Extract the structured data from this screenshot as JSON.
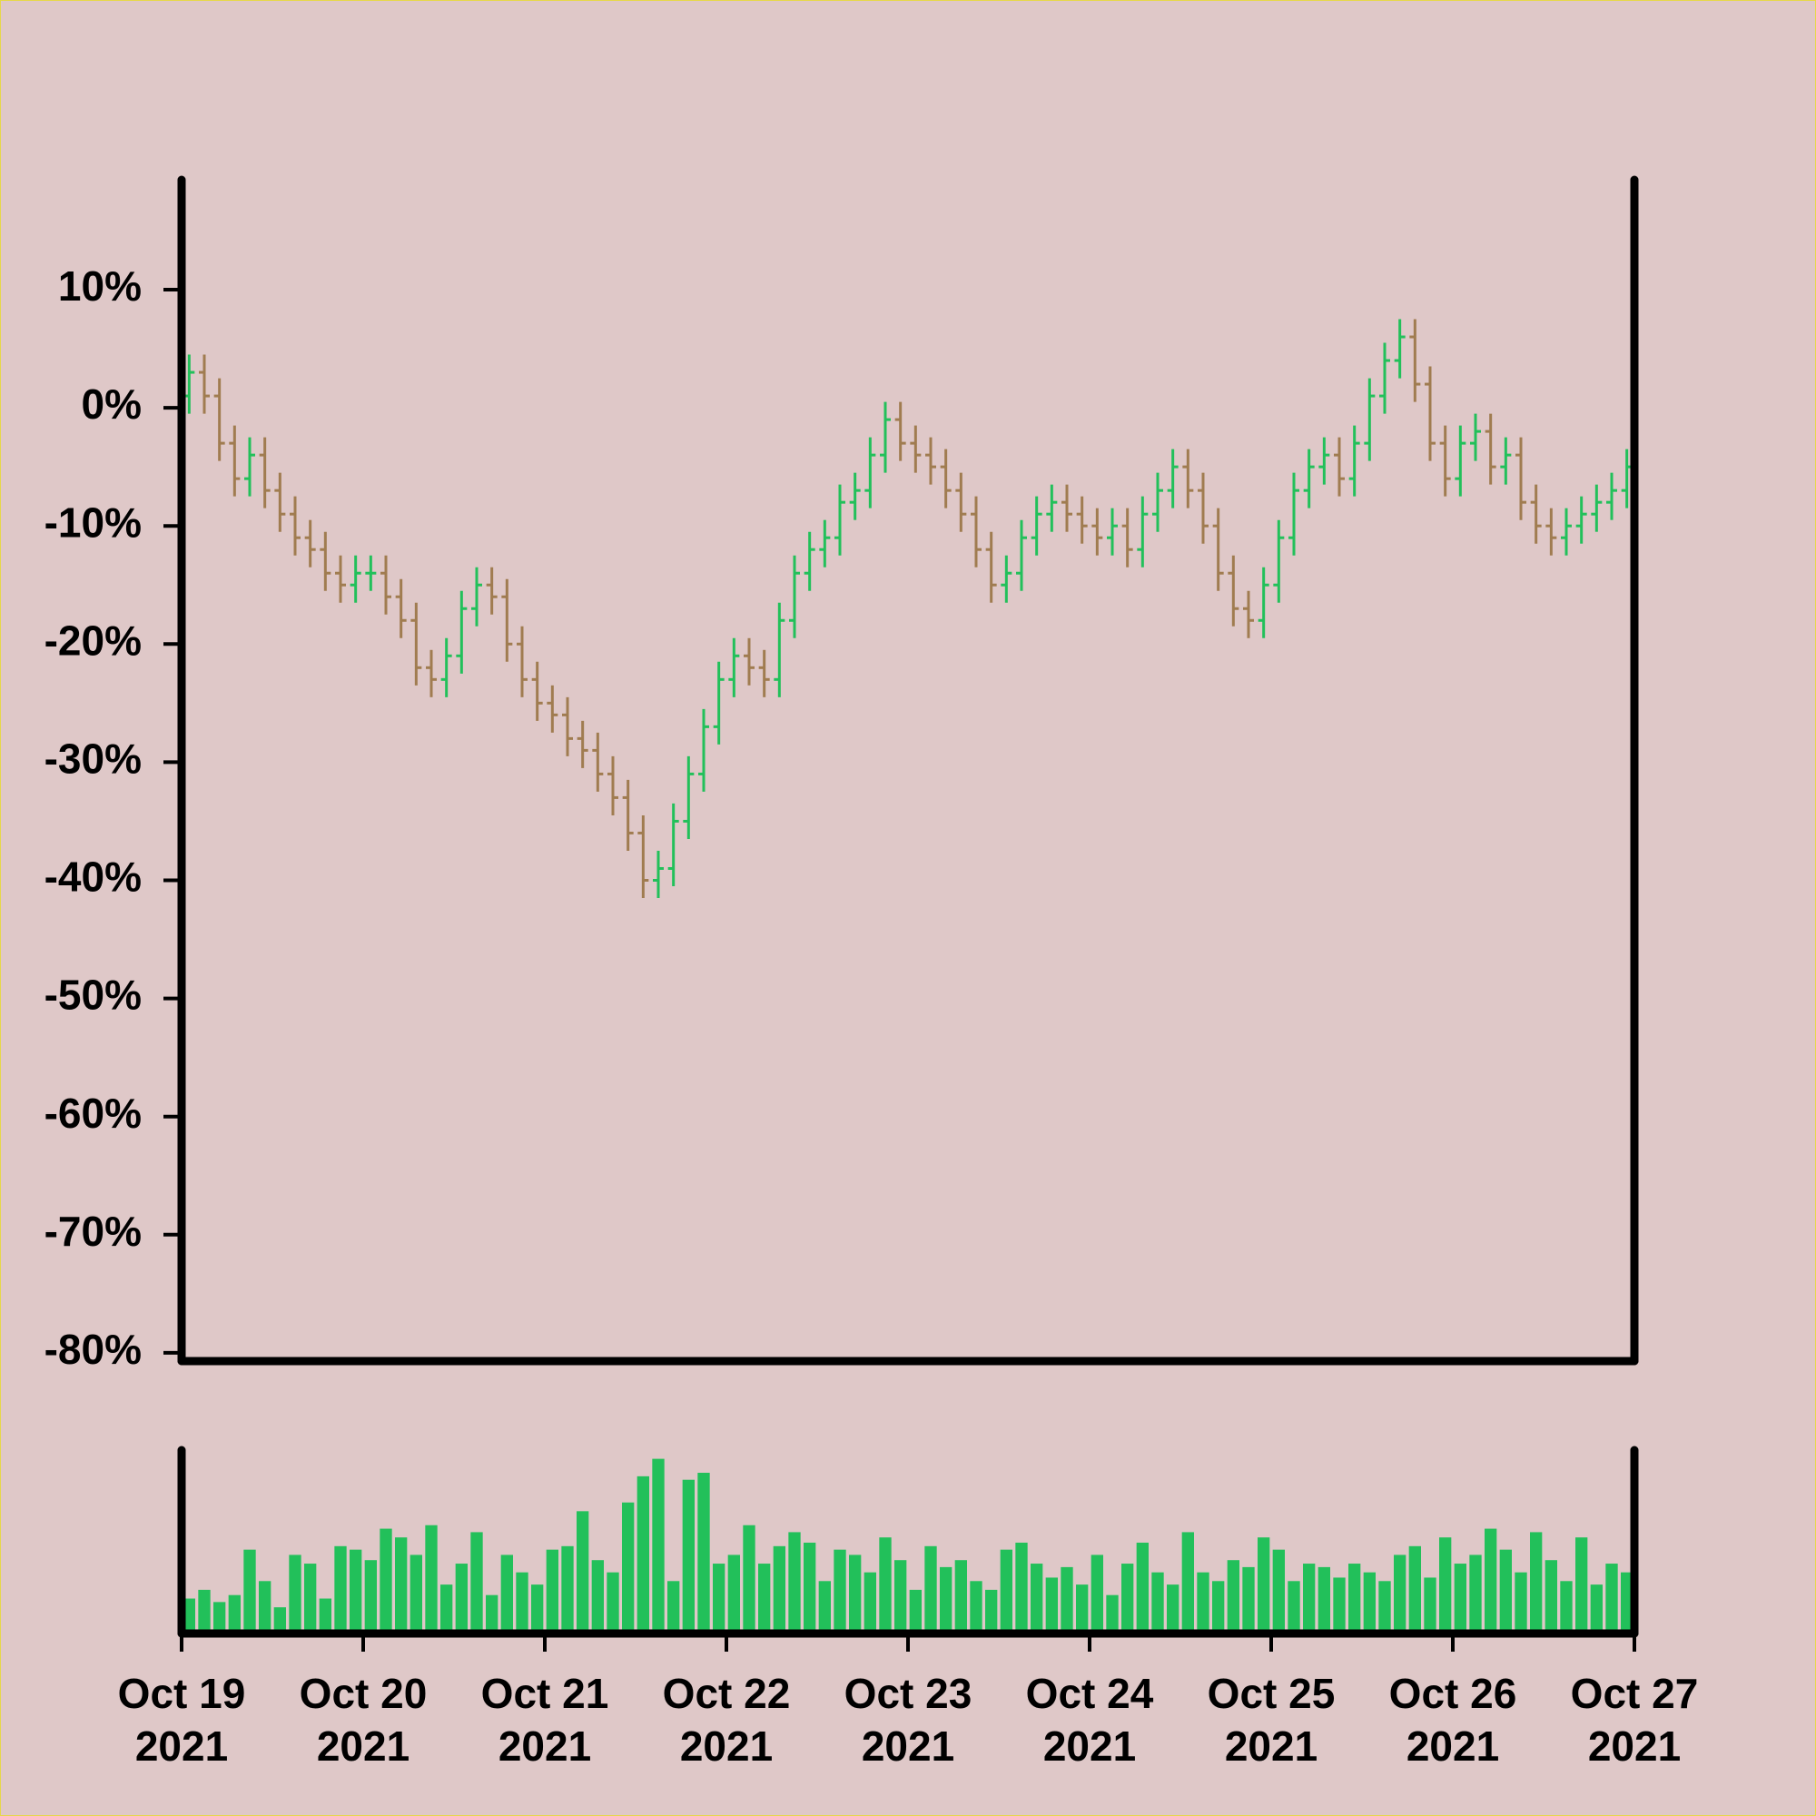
{
  "chart_data": {
    "type": "ohlc",
    "xlim": [
      0,
      8
    ],
    "xticks": [
      {
        "value": 0,
        "label": "Oct 19\n2021"
      },
      {
        "value": 1,
        "label": "Oct 20\n2021"
      },
      {
        "value": 2,
        "label": "Oct 21\n2021"
      },
      {
        "value": 3,
        "label": "Oct 22\n2021"
      },
      {
        "value": 4,
        "label": "Oct 23\n2021"
      },
      {
        "value": 5,
        "label": "Oct 24\n2021"
      },
      {
        "value": 6,
        "label": "Oct 25\n2021"
      },
      {
        "value": 7,
        "label": "Oct 26\n2021"
      },
      {
        "value": 8,
        "label": "Oct 27\n2021"
      }
    ],
    "ylim": [
      -80.7,
      19.3
    ],
    "yticks": [
      {
        "value": 10,
        "label": "10%"
      },
      {
        "value": 0,
        "label": "0%"
      },
      {
        "value": -10,
        "label": "-10%"
      },
      {
        "value": -20,
        "label": "-20%"
      },
      {
        "value": -30,
        "label": "-30%"
      },
      {
        "value": -40,
        "label": "-40%"
      },
      {
        "value": -50,
        "label": "-50%"
      },
      {
        "value": -60,
        "label": "-60%"
      },
      {
        "value": -70,
        "label": "-70%"
      },
      {
        "value": -80,
        "label": "-80%"
      }
    ],
    "volume_ylim": [
      0,
      105
    ],
    "up_color": "#22c05a",
    "down_color": "#a07c50",
    "volume_color": "#22c05a",
    "open": [
      1,
      3,
      1,
      -3,
      -6,
      -4,
      -7,
      -9,
      -11,
      -12,
      -14,
      -15,
      -14,
      -14,
      -16,
      -18,
      -22,
      -23,
      -21,
      -17,
      -15,
      -16,
      -20,
      -23,
      -25,
      -26,
      -28,
      -29,
      -31,
      -33,
      -36,
      -40,
      -39,
      -35,
      -31,
      -27,
      -23,
      -21,
      -22,
      -23,
      -18,
      -14,
      -12,
      -11,
      -8,
      -7,
      -4,
      -1,
      -3,
      -4,
      -5,
      -7,
      -9,
      -12,
      -15,
      -14,
      -11,
      -9,
      -8,
      -9,
      -10,
      -11,
      -10,
      -12,
      -9,
      -7,
      -5,
      -7,
      -10,
      -14,
      -17,
      -18,
      -15,
      -11,
      -7,
      -5,
      -4,
      -6,
      -3,
      1,
      4,
      6,
      2,
      -3,
      -6,
      -3,
      -2,
      -5,
      -4,
      -8,
      -10,
      -11,
      -10,
      -9,
      -8,
      -7
    ],
    "high": [
      4.5,
      4.5,
      2.5,
      -1.5,
      -2.5,
      -2.5,
      -5.5,
      -7.5,
      -9.5,
      -10.5,
      -12.5,
      -12.5,
      -12.5,
      -12.5,
      -14.5,
      -16.5,
      -20.5,
      -19.5,
      -15.5,
      -13.5,
      -13.5,
      -14.5,
      -18.5,
      -21.5,
      -23.5,
      -24.5,
      -26.5,
      -27.5,
      -29.5,
      -31.5,
      -34.5,
      -37.5,
      -33.5,
      -29.5,
      -25.5,
      -21.5,
      -19.5,
      -19.5,
      -20.5,
      -16.5,
      -12.5,
      -10.5,
      -9.5,
      -6.5,
      -5.5,
      -2.5,
      0.5,
      0.5,
      -1.5,
      -2.5,
      -3.5,
      -5.5,
      -7.5,
      -10.5,
      -12.5,
      -9.5,
      -7.5,
      -6.5,
      -6.5,
      -7.5,
      -8.5,
      -8.5,
      -8.5,
      -7.5,
      -5.5,
      -3.5,
      -3.5,
      -5.5,
      -8.5,
      -12.5,
      -15.5,
      -13.5,
      -9.5,
      -5.5,
      -3.5,
      -2.5,
      -2.5,
      -1.5,
      2.5,
      5.5,
      7.5,
      7.5,
      3.5,
      -1.5,
      -1.5,
      -0.5,
      -0.5,
      -2.5,
      -2.5,
      -6.5,
      -8.5,
      -8.5,
      -7.5,
      -6.5,
      -5.5,
      -3.5
    ],
    "low": [
      -0.5,
      -0.5,
      -4.5,
      -7.5,
      -7.5,
      -8.5,
      -10.5,
      -12.5,
      -13.5,
      -15.5,
      -16.5,
      -16.5,
      -15.5,
      -17.5,
      -19.5,
      -23.5,
      -24.5,
      -24.5,
      -22.5,
      -18.5,
      -17.5,
      -21.5,
      -24.5,
      -26.5,
      -27.5,
      -29.5,
      -30.5,
      -32.5,
      -34.5,
      -37.5,
      -41.5,
      -41.5,
      -40.5,
      -36.5,
      -32.5,
      -28.5,
      -24.5,
      -23.5,
      -24.5,
      -24.5,
      -19.5,
      -15.5,
      -13.5,
      -12.5,
      -9.5,
      -8.5,
      -5.5,
      -4.5,
      -5.5,
      -6.5,
      -8.5,
      -10.5,
      -13.5,
      -16.5,
      -16.5,
      -15.5,
      -12.5,
      -10.5,
      -10.5,
      -11.5,
      -12.5,
      -12.5,
      -13.5,
      -13.5,
      -10.5,
      -8.5,
      -8.5,
      -11.5,
      -15.5,
      -18.5,
      -19.5,
      -19.5,
      -16.5,
      -12.5,
      -8.5,
      -6.5,
      -7.5,
      -7.5,
      -4.5,
      -0.5,
      2.5,
      0.5,
      -4.5,
      -7.5,
      -7.5,
      -4.5,
      -6.5,
      -6.5,
      -9.5,
      -11.5,
      -12.5,
      -12.5,
      -11.5,
      -10.5,
      -9.5,
      -8.5
    ],
    "close": [
      3,
      1,
      -3,
      -6,
      -4,
      -7,
      -9,
      -11,
      -12,
      -14,
      -15,
      -14,
      -14,
      -16,
      -18,
      -22,
      -23,
      -21,
      -17,
      -15,
      -16,
      -20,
      -23,
      -25,
      -26,
      -28,
      -29,
      -31,
      -33,
      -36,
      -40,
      -39,
      -35,
      -31,
      -27,
      -23,
      -21,
      -22,
      -23,
      -18,
      -14,
      -12,
      -11,
      -8,
      -7,
      -4,
      -1,
      -3,
      -4,
      -5,
      -7,
      -9,
      -12,
      -15,
      -14,
      -11,
      -9,
      -8,
      -9,
      -10,
      -11,
      -10,
      -12,
      -9,
      -7,
      -5,
      -7,
      -10,
      -14,
      -17,
      -18,
      -15,
      -11,
      -7,
      -5,
      -4,
      -6,
      -3,
      1,
      4,
      6,
      2,
      -3,
      -6,
      -3,
      -2,
      -5,
      -4,
      -8,
      -10,
      -11,
      -10,
      -9,
      -8,
      -7,
      -5
    ],
    "volume": [
      20,
      25,
      18,
      22,
      48,
      30,
      15,
      45,
      40,
      20,
      50,
      48,
      42,
      60,
      55,
      45,
      62,
      28,
      40,
      58,
      22,
      45,
      35,
      28,
      48,
      50,
      70,
      42,
      35,
      75,
      90,
      100,
      30,
      88,
      92,
      40,
      45,
      62,
      40,
      50,
      58,
      52,
      30,
      48,
      45,
      35,
      55,
      42,
      25,
      50,
      38,
      42,
      30,
      25,
      48,
      52,
      40,
      32,
      38,
      28,
      45,
      22,
      40,
      52,
      35,
      28,
      58,
      35,
      30,
      42,
      38,
      55,
      48,
      30,
      40,
      38,
      32,
      40,
      35,
      30,
      45,
      50,
      32,
      55,
      40,
      45,
      60,
      48,
      35,
      58,
      42,
      30,
      55,
      28,
      40,
      35
    ]
  }
}
